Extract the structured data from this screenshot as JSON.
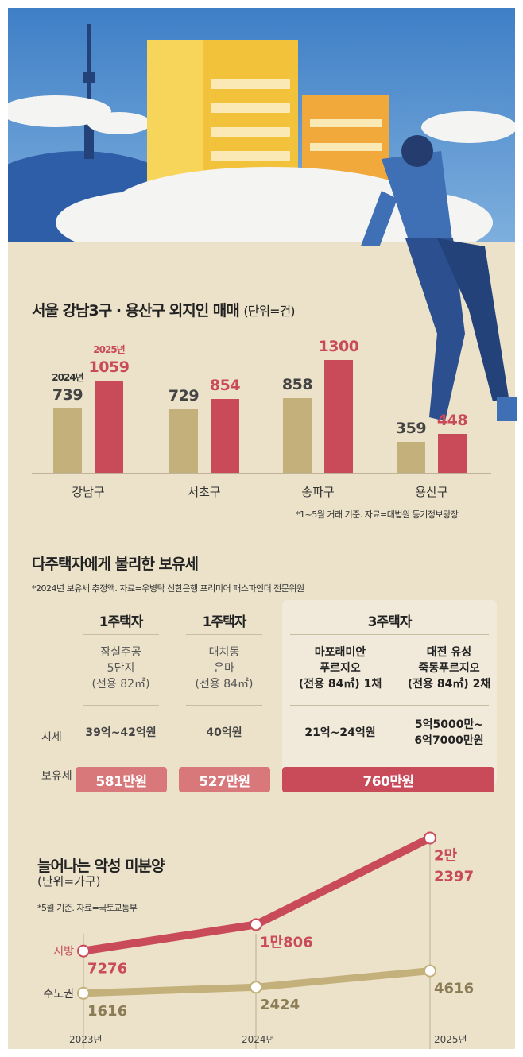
{
  "colors": {
    "y2024": "#c4b07a",
    "y2025": "#c94a59",
    "jibang": "#c94a59",
    "sudo": "#c4b07a",
    "pill_light": "#d9787b",
    "pill_dark": "#c94a59"
  },
  "chart_data": [
    {
      "type": "bar",
      "title": "서울 강남3구 · 용산구 외지인 매매",
      "unit": "(단위=건)",
      "categories": [
        "강남구",
        "서초구",
        "송파구",
        "용산구"
      ],
      "series": [
        {
          "name": "2024년",
          "values": [
            739,
            729,
            858,
            359
          ]
        },
        {
          "name": "2025년",
          "values": [
            1059,
            854,
            1300,
            448
          ]
        }
      ],
      "ylim": [
        0,
        1300
      ],
      "note": "*1~5월 거래 기준. 자료=대법원 등기정보광장"
    },
    {
      "type": "table",
      "title": "다주택자에게 불리한 보유세",
      "note": "*2024년 보유세 추정액. 자료=우병탁 신한은행 프리미어 패스파인더 전문위원",
      "row_labels": {
        "price": "시세",
        "tax": "보유세"
      },
      "groups": [
        {
          "header": "1주택자",
          "apartments": [
            {
              "name": [
                "잠실주공",
                "5단지",
                "(전용 82㎡)"
              ],
              "price": [
                "39억~42억원"
              ]
            }
          ],
          "tax": "581만원"
        },
        {
          "header": "1주택자",
          "apartments": [
            {
              "name": [
                "대치동",
                "은마",
                "(전용 84㎡)"
              ],
              "price": [
                "40억원"
              ]
            }
          ],
          "tax": "527만원"
        },
        {
          "header": "3주택자",
          "apartments": [
            {
              "name": [
                "마포래미안",
                "푸르지오",
                "(전용 84㎡) 1채"
              ],
              "price": [
                "21억~24억원"
              ]
            },
            {
              "name": [
                "대전 유성",
                "죽동푸르지오",
                "(전용 84㎡) 2채"
              ],
              "price": [
                "5억5000만~",
                "6억7000만원"
              ]
            }
          ],
          "tax": "760만원"
        }
      ]
    },
    {
      "type": "line",
      "title": "늘어나는 악성 미분양",
      "unit": "(단위=가구)",
      "note": "*5월 기준. 자료=국토교통부",
      "x": [
        "2023년",
        "2024년",
        "2025년"
      ],
      "series": [
        {
          "name": "지방",
          "values": [
            7276,
            10806,
            22397
          ],
          "labels": [
            "7276",
            "1만806",
            "2만\n2397"
          ]
        },
        {
          "name": "수도권",
          "values": [
            1616,
            2424,
            4616
          ],
          "labels": [
            "1616",
            "2424",
            "4616"
          ]
        }
      ]
    }
  ]
}
